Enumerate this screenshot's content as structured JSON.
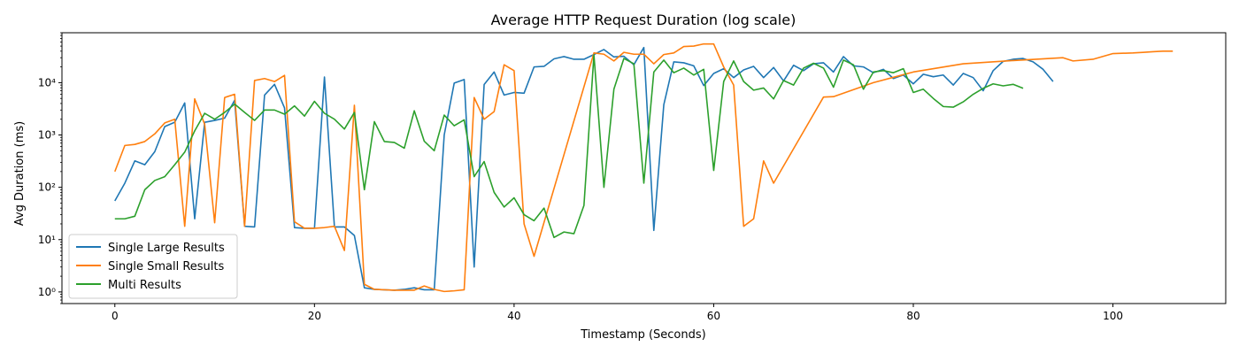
{
  "chart_data": {
    "type": "line",
    "title": "Average HTTP Request Duration (log scale)",
    "xlabel": "Timestamp (Seconds)",
    "ylabel": "Avg Duration (ms)",
    "yscale": "log",
    "xlim": [
      -5.3,
      111.3
    ],
    "ylim": [
      0.6,
      90000
    ],
    "xticks": [
      0,
      20,
      40,
      60,
      80,
      100
    ],
    "xtick_labels": [
      "0",
      "20",
      "40",
      "60",
      "80",
      "100"
    ],
    "ytick_labels": [
      "10⁰",
      "10¹",
      "10²",
      "10³",
      "10⁴"
    ],
    "yticks": [
      1,
      10,
      100,
      1000,
      10000
    ],
    "grid": false,
    "legend_position": "lower-left",
    "series": [
      {
        "name": "Single Large Results",
        "color": "#1f77b4",
        "x": [
          0,
          1,
          2,
          3,
          4,
          5,
          6,
          7,
          8,
          9,
          10,
          11,
          12,
          13,
          14,
          15,
          16,
          17,
          18,
          19,
          20,
          21,
          22,
          23,
          24,
          25,
          26,
          27,
          28,
          29,
          30,
          31,
          32,
          33,
          34,
          35,
          36,
          37,
          38,
          39,
          40,
          41,
          42,
          43,
          44,
          45,
          46,
          47,
          48,
          49,
          50,
          51,
          52,
          53,
          54,
          55,
          56,
          57,
          58,
          59,
          60,
          61,
          62,
          63,
          64,
          65,
          66,
          67,
          68,
          69,
          70,
          71,
          72,
          73,
          74,
          75,
          76,
          77,
          78,
          79,
          80,
          81,
          82,
          83,
          84,
          85,
          86,
          87,
          88,
          89,
          90,
          91,
          92,
          93,
          94
        ],
        "values": [
          55,
          120,
          320,
          270,
          480,
          1450,
          1750,
          4100,
          25,
          1750,
          1900,
          2100,
          4600,
          18,
          17.5,
          5800,
          9300,
          3300,
          17,
          16.5,
          16.5,
          12800,
          17.5,
          17.5,
          12,
          1.2,
          1.12,
          1.1,
          1.08,
          1.12,
          1.2,
          1.1,
          1.1,
          1000,
          9800,
          11500,
          3,
          9200,
          16000,
          5800,
          6500,
          6300,
          20000,
          20500,
          28500,
          31500,
          28000,
          28000,
          34500,
          43000,
          31000,
          32000,
          22000,
          47000,
          15,
          3800,
          25000,
          24000,
          21000,
          8800,
          15000,
          18500,
          12500,
          17500,
          20500,
          12500,
          19500,
          10800,
          21500,
          17000,
          23000,
          24000,
          16000,
          31500,
          21000,
          20000,
          15500,
          18000,
          12000,
          14000,
          9500,
          14500,
          13000,
          14000,
          9000,
          15000,
          12500,
          7000,
          17000,
          25500,
          28000,
          29000,
          25000,
          18000,
          10500
        ]
      },
      {
        "name": "Single Small Results",
        "color": "#ff7f0e",
        "x": [
          0,
          1,
          2,
          3,
          4,
          5,
          6,
          7,
          8,
          9,
          10,
          11,
          12,
          13,
          14,
          15,
          16,
          17,
          18,
          19,
          20,
          21,
          22,
          23,
          24,
          25,
          26,
          27,
          28,
          29,
          30,
          31,
          32,
          33,
          34,
          35,
          36,
          37,
          38,
          39,
          40,
          41,
          42,
          48,
          49,
          50,
          51,
          52,
          53,
          54,
          55,
          56,
          57,
          58,
          59,
          60,
          61,
          62,
          63,
          64,
          65,
          66,
          71,
          72,
          76,
          80,
          85,
          90,
          95,
          96,
          98,
          100,
          102,
          103,
          104,
          105,
          106
        ],
        "values": [
          200,
          630,
          660,
          750,
          1050,
          1700,
          2000,
          18,
          4900,
          1600,
          21,
          5200,
          6000,
          18,
          11000,
          12000,
          10500,
          13800,
          22,
          16.5,
          16.5,
          17,
          18,
          6.2,
          3700,
          1.4,
          1.12,
          1.1,
          1.08,
          1.08,
          1.08,
          1.3,
          1.12,
          1.02,
          1.05,
          1.1,
          5200,
          2000,
          2800,
          22000,
          17000,
          20,
          4.8,
          37000,
          35000,
          26000,
          38000,
          35000,
          35000,
          23000,
          34500,
          37000,
          49000,
          50000,
          55000,
          55000,
          20000,
          9000,
          18,
          25,
          320,
          120,
          5300,
          5400,
          10000,
          16000,
          23000,
          26500,
          30000,
          26000,
          28000,
          36000,
          37000,
          38000,
          39000,
          40000,
          40000
        ]
      },
      {
        "name": "Multi Results",
        "color": "#2ca02c",
        "x": [
          0,
          1,
          2,
          3,
          4,
          5,
          6,
          7,
          8,
          9,
          10,
          11,
          12,
          13,
          14,
          15,
          16,
          17,
          18,
          19,
          20,
          21,
          22,
          23,
          24,
          25,
          26,
          27,
          28,
          29,
          30,
          31,
          32,
          33,
          34,
          35,
          36,
          37,
          38,
          39,
          40,
          41,
          42,
          43,
          44,
          45,
          46,
          47,
          48,
          49,
          50,
          51,
          52,
          53,
          54,
          55,
          56,
          57,
          58,
          59,
          60,
          61,
          62,
          63,
          64,
          65,
          66,
          67,
          68,
          69,
          70,
          71,
          72,
          73,
          74,
          75,
          76,
          77,
          78,
          79,
          80,
          81,
          82,
          83,
          84,
          85,
          86,
          87,
          88,
          89,
          90,
          91
        ],
        "values": [
          25,
          25,
          28,
          90,
          135,
          160,
          270,
          470,
          1200,
          2600,
          2000,
          2700,
          3900,
          2700,
          1900,
          3000,
          3000,
          2500,
          3600,
          2300,
          4400,
          2600,
          2000,
          1300,
          2700,
          90,
          1800,
          750,
          720,
          560,
          2900,
          760,
          500,
          2400,
          1500,
          1950,
          160,
          310,
          80,
          42,
          63,
          30,
          23,
          40,
          11,
          14,
          13,
          45,
          34000,
          100,
          7500,
          29000,
          23000,
          120,
          16000,
          27000,
          15500,
          19000,
          14000,
          18000,
          210,
          10500,
          26000,
          10500,
          7200,
          7900,
          4900,
          11000,
          9000,
          19000,
          23500,
          19000,
          8200,
          27000,
          22000,
          7500,
          16000,
          17000,
          15500,
          18500,
          6500,
          7500,
          5000,
          3500,
          3400,
          4300,
          6000,
          7800,
          9500,
          8700,
          9300,
          7800
        ]
      }
    ]
  }
}
